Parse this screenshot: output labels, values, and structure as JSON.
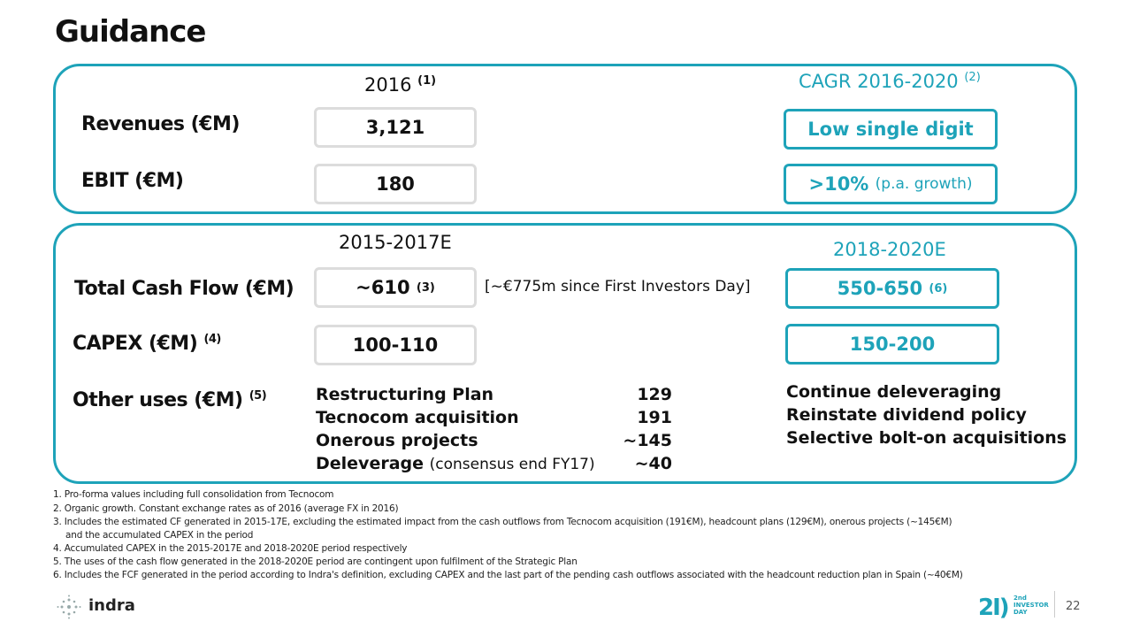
{
  "title": "Guidance",
  "top": {
    "col1_header": "2016",
    "col1_note": "(1)",
    "col2_header": "CAGR 2016-2020",
    "col2_note": "(2)",
    "rows": [
      {
        "label": "Revenues (€M)",
        "value": "3,121",
        "guidance": "Low single digit"
      },
      {
        "label": "EBIT (€M)",
        "value": "180",
        "guidance": ">10%",
        "guidance_note": "(p.a. growth)"
      }
    ]
  },
  "bottom": {
    "col1_header": "2015-2017E",
    "col2_header": "2018-2020E",
    "cash_flow": {
      "label": "Total Cash Flow (€M)",
      "value": "~610",
      "value_note": "(3)",
      "comment": "[~€775m since First Investors Day]",
      "guidance": "550-650",
      "guidance_note": "(6)"
    },
    "capex": {
      "label": "CAPEX (€M)",
      "label_note": "(4)",
      "value": "100-110",
      "guidance": "150-200"
    },
    "other_uses": {
      "label": "Other uses (€M)",
      "label_note": "(5)",
      "items": [
        {
          "name": "Restructuring Plan",
          "value": "129"
        },
        {
          "name": "Tecnocom acquisition",
          "value": "191"
        },
        {
          "name": "Onerous projects",
          "value": "~145"
        },
        {
          "name": "Deleverage",
          "note": "(consensus end FY17)",
          "value": "~40"
        }
      ],
      "guidance": [
        "Continue deleveraging",
        "Reinstate dividend policy",
        "Selective bolt-on acquisitions"
      ]
    }
  },
  "footnotes": [
    "1. Pro-forma values including full consolidation from Tecnocom",
    "2. Organic growth. Constant exchange rates as of 2016 (average FX in 2016)",
    "3. Includes the estimated CF generated in 2015-17E, excluding the estimated impact from the cash outflows from Tecnocom acquisition (191€M), headcount plans (129€M), onerous projects (~145€M)",
    "and the accumulated CAPEX in the period",
    "4. Accumulated CAPEX in the 2015-2017E and 2018-2020E period respectively",
    "5. The uses of the cash flow generated in the 2018-2020E period are contingent upon fulfilment of the Strategic Plan",
    "6. Includes the FCF generated in the period according to Indra's definition, excluding CAPEX and the last part of the pending cash outflows associated with the headcount reduction plan in Spain (~40€M)"
  ],
  "footer": {
    "logo": "indra",
    "event": [
      "2nd",
      "INVESTOR",
      "DAY"
    ],
    "page": "22"
  }
}
